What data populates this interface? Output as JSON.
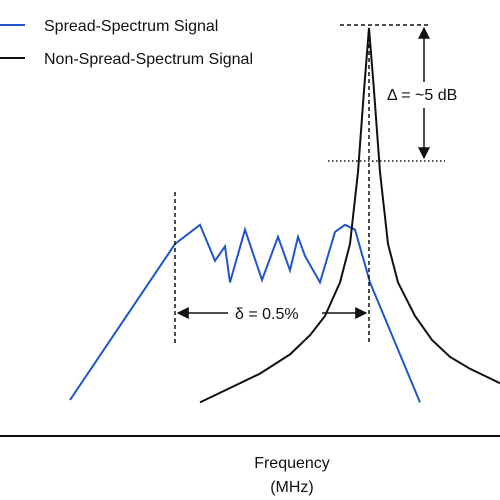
{
  "chart_data": {
    "type": "line",
    "title": "",
    "xlabel": [
      "Frequency",
      "(MHz)"
    ],
    "ylabel": "",
    "grid": false,
    "legend": "top-left",
    "series": [
      {
        "name": "Spread-Spectrum Signal",
        "color": "#2255cc",
        "points": [
          [
            0.07,
            0.075
          ],
          [
            0.175,
            0.4
          ],
          [
            0.2,
            0.44
          ],
          [
            0.215,
            0.365
          ],
          [
            0.225,
            0.395
          ],
          [
            0.23,
            0.32
          ],
          [
            0.245,
            0.43
          ],
          [
            0.262,
            0.325
          ],
          [
            0.278,
            0.415
          ],
          [
            0.29,
            0.345
          ],
          [
            0.298,
            0.415
          ],
          [
            0.305,
            0.375
          ],
          [
            0.32,
            0.32
          ],
          [
            0.335,
            0.425
          ],
          [
            0.345,
            0.44
          ],
          [
            0.355,
            0.43
          ],
          [
            0.37,
            0.32
          ],
          [
            0.42,
            0.07
          ]
        ]
      },
      {
        "name": "Non-Spread-Spectrum Signal",
        "color": "#111111",
        "points": [
          [
            0.2,
            0.07
          ],
          [
            0.23,
            0.1
          ],
          [
            0.26,
            0.13
          ],
          [
            0.29,
            0.17
          ],
          [
            0.31,
            0.21
          ],
          [
            0.325,
            0.25
          ],
          [
            0.34,
            0.32
          ],
          [
            0.35,
            0.4
          ],
          [
            0.358,
            0.55
          ],
          [
            0.364,
            0.72
          ],
          [
            0.369,
            0.85
          ],
          [
            0.374,
            0.72
          ],
          [
            0.38,
            0.55
          ],
          [
            0.388,
            0.4
          ],
          [
            0.398,
            0.32
          ],
          [
            0.415,
            0.25
          ],
          [
            0.432,
            0.2
          ],
          [
            0.45,
            0.165
          ],
          [
            0.47,
            0.14
          ],
          [
            0.49,
            0.12
          ],
          [
            0.5,
            0.11
          ]
        ]
      }
    ],
    "annotations": [
      {
        "text": "Δ = ~5 dB",
        "kind": "vertical-span"
      },
      {
        "text": "δ = 0.5%",
        "kind": "horizontal-span"
      }
    ]
  }
}
